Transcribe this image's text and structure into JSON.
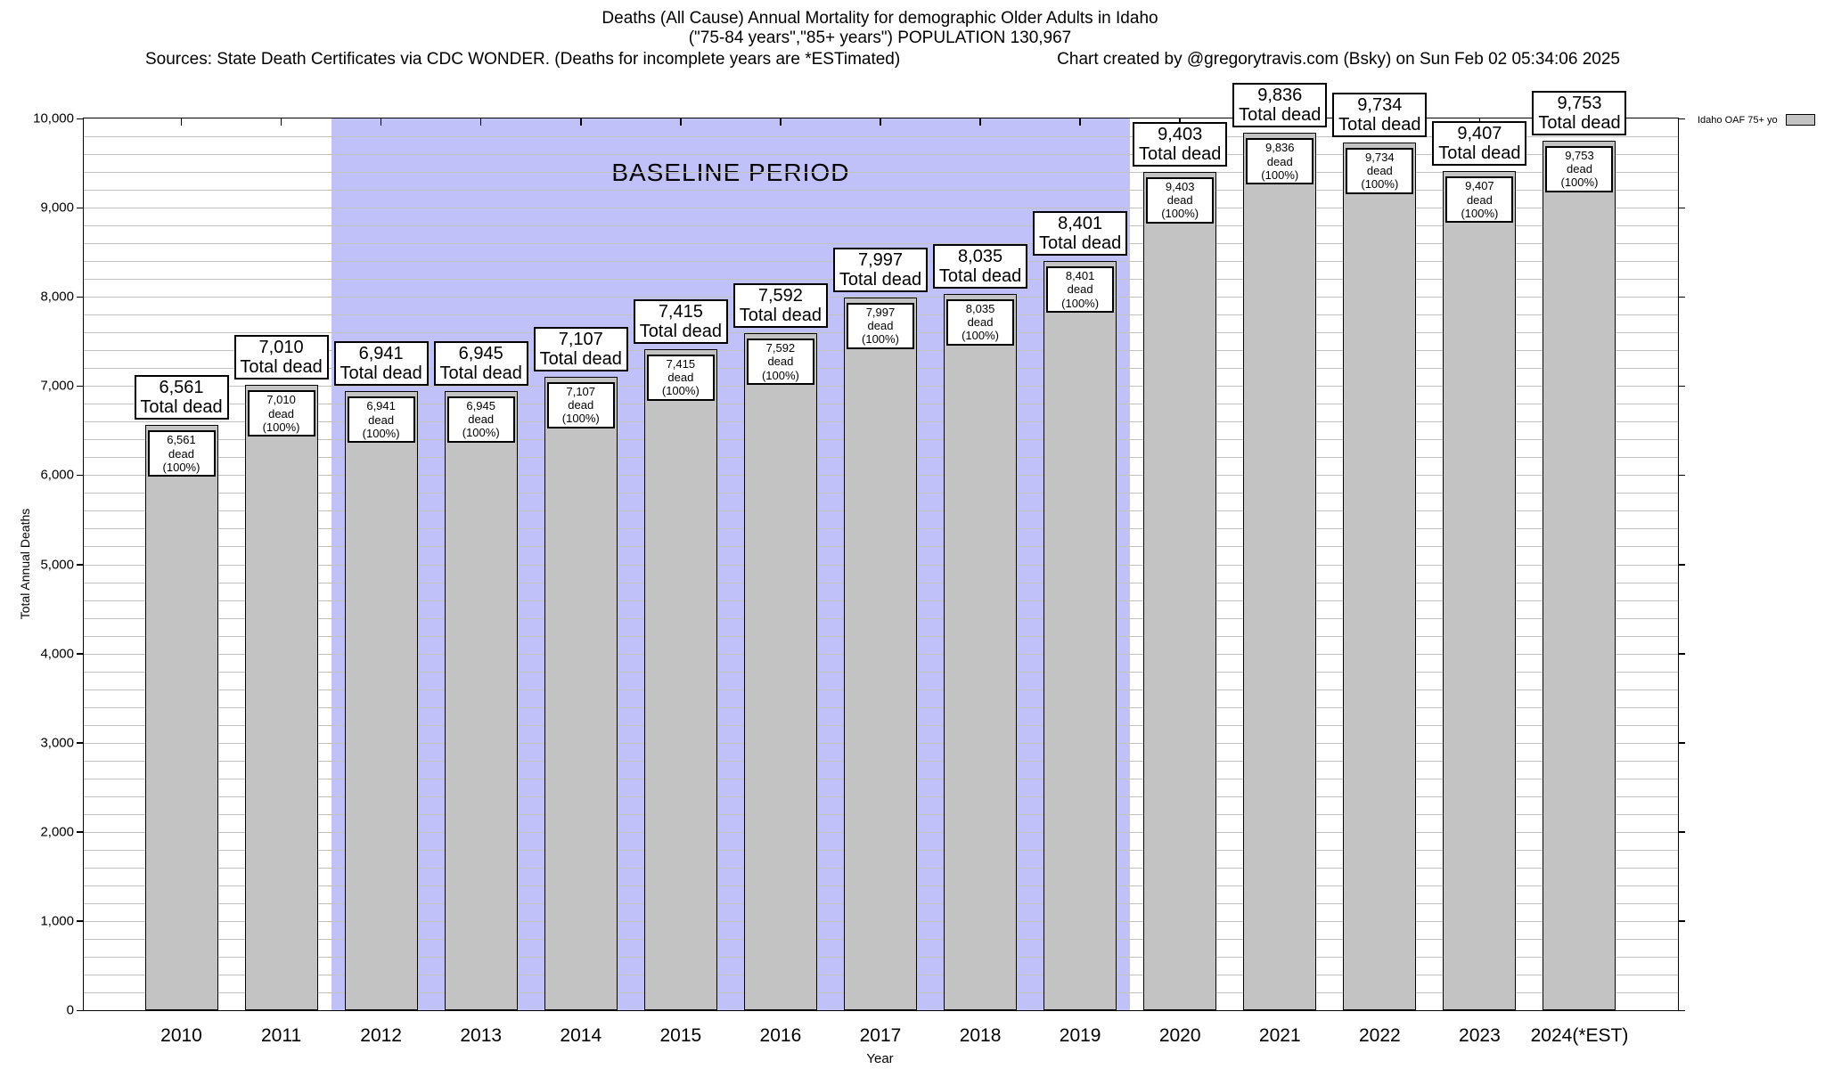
{
  "title": {
    "line1": "Deaths (All Cause) Annual Mortality for demographic Older Adults in Idaho",
    "line2": "(\"75-84 years\",\"85+ years\") POPULATION 130,967",
    "sources": "Sources: State Death Certificates via CDC WONDER. (Deaths for incomplete years are *ESTimated)",
    "credit": "Chart created by @gregorytravis.com (Bsky) on Sun Feb 02 05:34:06 2025"
  },
  "legend": {
    "label": "Idaho OAF 75+ yo",
    "swatch_color": "#c3c3c3"
  },
  "axes": {
    "y_label": "Total Annual Deaths",
    "x_label": "Year",
    "y_tick_labels": [
      "0",
      "1,000",
      "2,000",
      "3,000",
      "4,000",
      "5,000",
      "6,000",
      "7,000",
      "8,000",
      "9,000",
      "10,000"
    ]
  },
  "colors": {
    "bar_fill": "#c3c3c3",
    "baseline_fill": "#c1c1fa",
    "grid": "#c2c2c2",
    "border": "#000000"
  },
  "chart_data": {
    "type": "bar",
    "title": "Deaths (All Cause) Annual Mortality for demographic Older Adults in Idaho",
    "subtitle": "(\"75-84 years\",\"85+ years\") POPULATION 130,967",
    "xlabel": "Year",
    "ylabel": "Total Annual Deaths",
    "ylim": [
      0,
      10000
    ],
    "y_major_step": 1000,
    "y_minor_step": 200,
    "grid": true,
    "legend_position": "top-right",
    "series_name": "Idaho OAF 75+ yo",
    "categories": [
      "2010",
      "2011",
      "2012",
      "2013",
      "2014",
      "2015",
      "2016",
      "2017",
      "2018",
      "2019",
      "2020",
      "2021",
      "2022",
      "2023",
      "2024(*EST)"
    ],
    "values": [
      6561,
      7010,
      6941,
      6945,
      7107,
      7415,
      7592,
      7997,
      8035,
      8401,
      9403,
      9836,
      9734,
      9407,
      9753
    ],
    "values_formatted": [
      "6,561",
      "7,010",
      "6,941",
      "6,945",
      "7,107",
      "7,415",
      "7,592",
      "7,997",
      "8,035",
      "8,401",
      "9,403",
      "9,836",
      "9,734",
      "9,407",
      "9,753"
    ],
    "total_label_suffix": "Total dead",
    "inner_label_suffix": "dead (100%)",
    "baseline_period": {
      "label": "BASELINE PERIOD",
      "start_category": "2012",
      "end_category": "2019"
    }
  }
}
